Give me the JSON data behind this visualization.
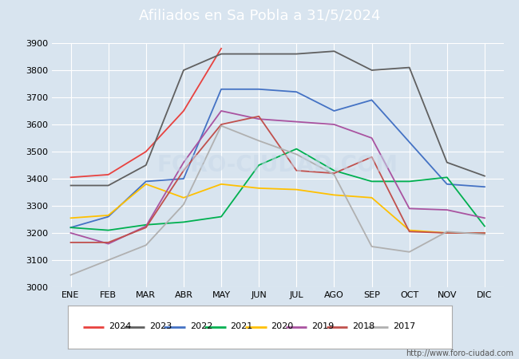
{
  "title": "Afiliados en Sa Pobla a 31/5/2024",
  "title_bg_color": "#4a7fc1",
  "title_text_color": "white",
  "ylim": [
    3000,
    3900
  ],
  "yticks": [
    3000,
    3100,
    3200,
    3300,
    3400,
    3500,
    3600,
    3700,
    3800,
    3900
  ],
  "months": [
    "ENE",
    "FEB",
    "MAR",
    "ABR",
    "MAY",
    "JUN",
    "JUL",
    "AGO",
    "SEP",
    "OCT",
    "NOV",
    "DIC"
  ],
  "watermark": "FORO-CIUDAD.COM",
  "url": "http://www.foro-ciudad.com",
  "series": {
    "2024": {
      "color": "#e8423f",
      "data": [
        3405,
        3415,
        3500,
        3650,
        3880,
        null,
        null,
        null,
        null,
        null,
        null,
        null
      ]
    },
    "2023": {
      "color": "#606060",
      "data": [
        3375,
        3375,
        3450,
        3800,
        3860,
        3860,
        3860,
        3870,
        3800,
        3810,
        3460,
        3410
      ]
    },
    "2022": {
      "color": "#4472c4",
      "data": [
        3220,
        3260,
        3390,
        3400,
        3730,
        3730,
        3720,
        3650,
        3690,
        null,
        3380,
        3370
      ]
    },
    "2021": {
      "color": "#00b050",
      "data": [
        3220,
        3210,
        3230,
        3240,
        3260,
        3450,
        3510,
        3430,
        3390,
        3390,
        3405,
        3225
      ]
    },
    "2020": {
      "color": "#ffc000",
      "data": [
        3255,
        3265,
        3380,
        3330,
        3380,
        3365,
        3360,
        3340,
        3330,
        3210,
        3200,
        3200
      ]
    },
    "2019": {
      "color": "#a953a0",
      "data": [
        3200,
        3160,
        3225,
        3460,
        3650,
        3620,
        3610,
        3600,
        3550,
        3290,
        3285,
        3255
      ]
    },
    "2018": {
      "color": "#c0504d",
      "data": [
        3165,
        3165,
        3220,
        3430,
        3600,
        3630,
        3430,
        3420,
        3480,
        3205,
        3200,
        3200
      ]
    },
    "2017": {
      "color": "#b0b0b0",
      "data": [
        3045,
        3100,
        3155,
        3305,
        3595,
        3540,
        3490,
        3415,
        3150,
        3130,
        3205,
        3195
      ]
    }
  },
  "legend_order": [
    "2024",
    "2023",
    "2022",
    "2021",
    "2020",
    "2019",
    "2018",
    "2017"
  ],
  "plot_bg_color": "#d8e4ef",
  "grid_color": "white",
  "outer_bg_color": "#d8e4ef",
  "fontsize_title": 13,
  "fontsize_ticks": 8,
  "fontsize_legend": 8,
  "fontsize_url": 7
}
